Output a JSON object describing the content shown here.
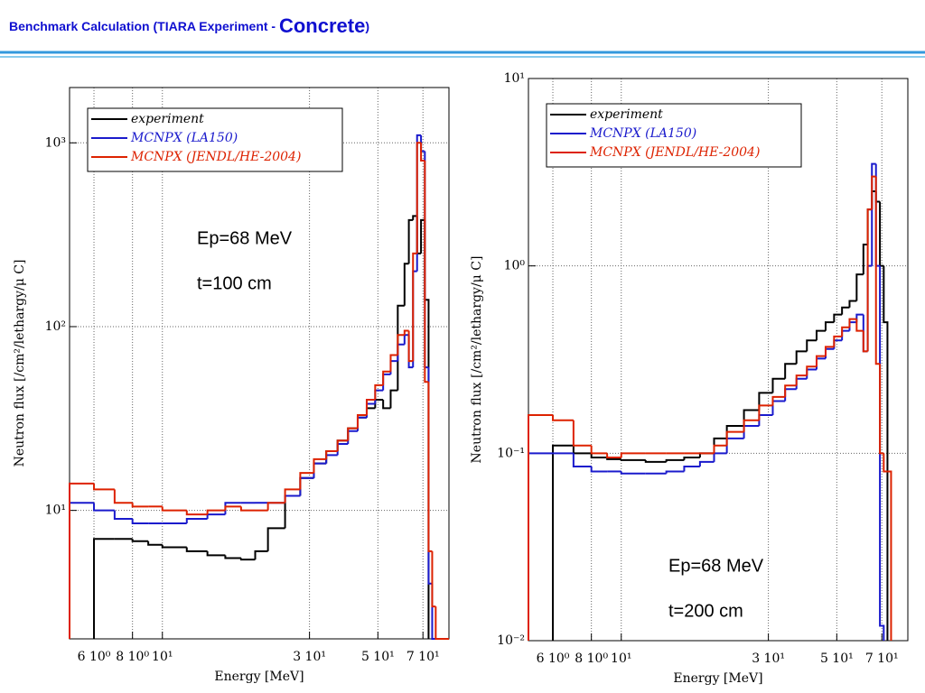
{
  "slide_title": [
    "Benchmark Calculation (TIARA Experiment - ",
    "Concrete",
    ")"
  ],
  "chart_data": [
    {
      "type": "step",
      "xlabel": "Energy [MeV]",
      "ylabel": "Neutron flux [/cm²/lethargy/μ C]",
      "annotations": [
        "Ep=68 MeV",
        "t=100 cm"
      ],
      "log_x": true,
      "log_y": true,
      "grid": true,
      "legend": "upper left",
      "xlim": [
        5,
        85
      ],
      "ylim": [
        2,
        2000
      ],
      "xticks": [
        {
          "value": 6,
          "label": "6 10⁰"
        },
        {
          "value": 8,
          "label": "8 10⁰"
        },
        {
          "value": 10,
          "label": "10¹"
        },
        {
          "value": 30,
          "label": "3 10¹"
        },
        {
          "value": 50,
          "label": "5 10¹"
        },
        {
          "value": 70,
          "label": "7 10¹"
        }
      ],
      "yticks": [
        {
          "value": 10,
          "label": "10¹"
        },
        {
          "value": 100,
          "label": "10²"
        },
        {
          "value": 1000,
          "label": "10³"
        }
      ],
      "x": [
        5,
        6,
        7,
        8,
        9,
        10,
        12,
        14,
        16,
        18,
        20,
        22,
        25,
        28,
        31,
        34,
        37,
        40,
        43,
        46,
        49,
        52,
        55,
        58,
        61,
        63,
        65,
        67,
        69,
        71,
        73,
        75,
        77
      ],
      "series": [
        {
          "name": "experiment",
          "color": "#000000",
          "values": [
            null,
            7,
            7,
            6.8,
            6.5,
            6.3,
            6,
            5.7,
            5.5,
            5.4,
            6,
            8,
            12,
            15,
            18,
            21,
            24,
            28,
            32,
            36,
            40,
            36,
            45,
            130,
            220,
            380,
            400,
            250,
            380,
            140,
            null,
            null,
            null
          ]
        },
        {
          "name": "MCNPX (LA150)",
          "color": "#1a1acc",
          "values": [
            11,
            10,
            9,
            8.5,
            8.5,
            8.5,
            9,
            9.5,
            11,
            11,
            11,
            11,
            12,
            15,
            18,
            20,
            23,
            27,
            32,
            38,
            45,
            55,
            65,
            80,
            90,
            60,
            200,
            1100,
            900,
            60,
            4,
            2,
            null
          ]
        },
        {
          "name": "MCNPX (JENDL/HE-2004)",
          "color": "#dd2200",
          "values": [
            14,
            13,
            11,
            10.5,
            10.5,
            10,
            9.5,
            10,
            10.5,
            10,
            10,
            11,
            13,
            16,
            19,
            21,
            24,
            28,
            33,
            40,
            48,
            57,
            70,
            90,
            95,
            65,
            250,
            1000,
            800,
            50,
            6,
            3,
            2
          ]
        }
      ]
    },
    {
      "type": "step",
      "xlabel": "Energy [MeV]",
      "ylabel": "Neutron flux [/cm²/lethargy/μ C]",
      "annotations": [
        "Ep=68 MeV",
        "t=200 cm"
      ],
      "log_x": true,
      "log_y": true,
      "grid": true,
      "legend": "upper left",
      "xlim": [
        5,
        85
      ],
      "ylim": [
        0.01,
        10
      ],
      "xticks": [
        {
          "value": 6,
          "label": "6 10⁰"
        },
        {
          "value": 8,
          "label": "8 10⁰"
        },
        {
          "value": 10,
          "label": "10¹"
        },
        {
          "value": 30,
          "label": "3 10¹"
        },
        {
          "value": 50,
          "label": "5 10¹"
        },
        {
          "value": 70,
          "label": "7 10¹"
        }
      ],
      "yticks": [
        {
          "value": 0.01,
          "label": "10⁻²"
        },
        {
          "value": 0.1,
          "label": "10⁻¹"
        },
        {
          "value": 1,
          "label": "10⁰"
        },
        {
          "value": 10,
          "label": "10¹"
        }
      ],
      "x": [
        5,
        6,
        7,
        8,
        9,
        10,
        12,
        14,
        16,
        18,
        20,
        22,
        25,
        28,
        31,
        34,
        37,
        40,
        43,
        46,
        49,
        52,
        55,
        58,
        61,
        63,
        65,
        67,
        69,
        71,
        73,
        75,
        77
      ],
      "series": [
        {
          "name": "experiment",
          "color": "#000000",
          "values": [
            null,
            0.11,
            0.1,
            0.095,
            0.093,
            0.092,
            0.09,
            0.092,
            0.095,
            0.1,
            0.12,
            0.14,
            0.17,
            0.21,
            0.25,
            0.3,
            0.35,
            0.4,
            0.45,
            0.5,
            0.55,
            0.6,
            0.65,
            0.9,
            1.3,
            2,
            2.5,
            2.2,
            1,
            0.5,
            null,
            null,
            null
          ]
        },
        {
          "name": "MCNPX (LA150)",
          "color": "#1a1acc",
          "values": [
            0.1,
            0.1,
            0.085,
            0.08,
            0.08,
            0.078,
            0.078,
            0.08,
            0.085,
            0.09,
            0.1,
            0.12,
            0.14,
            0.16,
            0.19,
            0.22,
            0.25,
            0.28,
            0.32,
            0.36,
            0.4,
            0.45,
            0.5,
            0.55,
            0.35,
            1,
            3.5,
            1,
            0.012,
            null,
            null,
            null,
            null
          ]
        },
        {
          "name": "MCNPX (JENDL/HE-2004)",
          "color": "#dd2200",
          "values": [
            0.16,
            0.15,
            0.11,
            0.1,
            0.095,
            0.1,
            0.1,
            0.1,
            0.1,
            0.1,
            0.11,
            0.13,
            0.15,
            0.18,
            0.2,
            0.23,
            0.26,
            0.29,
            0.33,
            0.37,
            0.42,
            0.47,
            0.52,
            0.45,
            0.35,
            2,
            3,
            0.3,
            0.1,
            0.08,
            0.08,
            null,
            null
          ]
        }
      ]
    }
  ]
}
